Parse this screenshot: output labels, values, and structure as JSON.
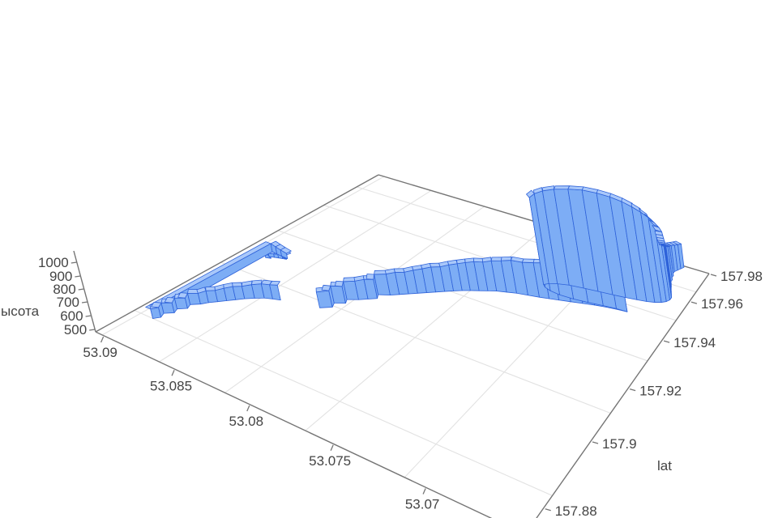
{
  "figure": {
    "kind": "3d-track-elevation-plot",
    "background": "#ffffff"
  },
  "axes": {
    "z": {
      "title": "ысота",
      "ticks": [
        500,
        600,
        700,
        800,
        900,
        1000
      ]
    },
    "x": {
      "title": "",
      "ticks": [
        53.09,
        53.085,
        53.08,
        53.075,
        53.07
      ]
    },
    "lat": {
      "title": "lat",
      "ticks": [
        157.88,
        157.9,
        157.92,
        157.94,
        157.96,
        157.98
      ]
    }
  },
  "colors": {
    "track_face": "#7dadf5",
    "track_top": "#a9c8fa",
    "track_edge": "#2e62d9",
    "grid_line": "#e2e2e2",
    "axis_line": "#757575",
    "tick_text": "#444444",
    "background": "#ffffff"
  },
  "chart_data": {
    "type": "line",
    "subtype": "3d-track-extruded-columns",
    "title": "",
    "xlabel": "",
    "lat_label": "lat",
    "zlabel": "ысота",
    "x_range": [
      53.07,
      53.09
    ],
    "lat_range": [
      157.88,
      157.98
    ],
    "z_range": [
      450,
      1060
    ],
    "z_base": 445,
    "grid": true,
    "legend": false,
    "point_format": [
      "lat",
      "x",
      "height"
    ],
    "points": [
      [
        157.8735,
        53.0885,
        468
      ],
      [
        157.8743,
        53.0881,
        469
      ],
      [
        157.8751,
        53.0884,
        470
      ],
      [
        157.8759,
        53.088,
        471
      ],
      [
        157.8766,
        53.0877,
        472
      ],
      [
        157.8772,
        53.0874,
        473
      ],
      [
        157.8777,
        53.0871,
        474
      ],
      [
        157.8781,
        53.0875,
        478
      ],
      [
        157.8784,
        53.0871,
        484
      ],
      [
        157.8787,
        53.0877,
        492
      ],
      [
        157.879,
        53.0882,
        500
      ],
      [
        157.8794,
        53.0887,
        507
      ],
      [
        157.88,
        53.0889,
        512
      ],
      [
        157.881,
        53.0886,
        514
      ],
      [
        157.8821,
        53.0888,
        519
      ],
      [
        157.8832,
        53.0883,
        515
      ],
      [
        157.8843,
        53.0885,
        522
      ],
      [
        157.8854,
        53.088,
        518
      ],
      [
        157.8865,
        53.0882,
        525
      ],
      [
        157.8876,
        53.0877,
        521
      ],
      [
        157.8887,
        53.0874,
        528
      ],
      [
        157.8898,
        53.087,
        524
      ],
      [
        157.8909,
        53.0866,
        532
      ],
      [
        157.892,
        53.0862,
        537
      ],
      [
        157.8931,
        53.0858,
        532
      ],
      [
        157.8942,
        53.0853,
        539
      ],
      [
        157.8952,
        53.0848,
        543
      ],
      [
        157.8958,
        53.0843,
        542
      ],
      [
        157.8963,
        53.0838,
        546
      ],
      null,
      [
        157.8982,
        53.0812,
        548
      ],
      [
        157.8996,
        53.0806,
        552
      ],
      [
        157.901,
        53.0808,
        558
      ],
      [
        157.9024,
        53.0802,
        554
      ],
      [
        157.9038,
        53.0804,
        562
      ],
      [
        157.9052,
        53.0798,
        566
      ],
      [
        157.9066,
        53.0794,
        572
      ],
      [
        157.908,
        53.079,
        568
      ],
      [
        157.9094,
        53.0792,
        577
      ],
      [
        157.9108,
        53.0786,
        581
      ],
      [
        157.9122,
        53.0782,
        587
      ],
      [
        157.9136,
        53.0778,
        584
      ],
      [
        157.915,
        53.0774,
        592
      ],
      [
        157.9164,
        53.077,
        597
      ],
      [
        157.9178,
        53.0766,
        604
      ],
      [
        157.9192,
        53.0762,
        601
      ],
      [
        157.9206,
        53.0758,
        609
      ],
      [
        157.922,
        53.0754,
        614
      ],
      [
        157.9232,
        53.075,
        620
      ],
      [
        157.9244,
        53.0746,
        626
      ],
      [
        157.9256,
        53.0742,
        624
      ],
      [
        157.9268,
        53.0738,
        632
      ],
      [
        157.9278,
        53.0733,
        638
      ],
      [
        157.9288,
        53.0728,
        646
      ],
      [
        157.9296,
        53.0722,
        644
      ],
      [
        157.9304,
        53.0716,
        652
      ],
      [
        157.9312,
        53.0711,
        658
      ],
      [
        157.932,
        53.0706,
        665
      ],
      [
        157.933,
        53.07,
        676
      ],
      [
        157.934,
        53.0694,
        690
      ],
      [
        157.935,
        53.0688,
        708
      ],
      [
        157.9358,
        53.0682,
        730
      ],
      [
        157.9364,
        53.0676,
        755
      ],
      [
        157.9368,
        53.0671,
        782
      ],
      [
        157.9366,
        53.0677,
        810
      ],
      [
        157.936,
        53.0684,
        838
      ],
      [
        157.9352,
        53.0692,
        864
      ],
      [
        157.9346,
        53.07,
        888
      ],
      [
        157.9344,
        53.0708,
        912
      ],
      [
        157.9348,
        53.0714,
        936
      ],
      [
        157.9356,
        53.0718,
        958
      ],
      [
        157.9366,
        53.072,
        978
      ],
      [
        157.9378,
        53.0718,
        996
      ],
      [
        157.939,
        53.0714,
        1012
      ],
      [
        157.9402,
        53.0708,
        1026
      ],
      [
        157.9412,
        53.07,
        1038
      ],
      [
        157.942,
        53.0692,
        1045
      ],
      [
        157.9428,
        53.0684,
        1040
      ],
      [
        157.9436,
        53.0677,
        1028
      ],
      [
        157.9444,
        53.0671,
        1010
      ],
      [
        157.9452,
        53.0666,
        986
      ],
      [
        157.9462,
        53.0662,
        958
      ],
      [
        157.9474,
        53.0659,
        926
      ],
      [
        157.9488,
        53.0657,
        892
      ],
      [
        157.9504,
        53.0656,
        856
      ],
      [
        157.952,
        53.0656,
        820
      ],
      [
        157.9536,
        53.0657,
        786
      ],
      [
        157.9552,
        53.0658,
        754
      ],
      [
        157.9568,
        53.0659,
        724
      ],
      [
        157.9586,
        53.066,
        698
      ],
      [
        157.9604,
        53.0661,
        676
      ],
      [
        157.9622,
        53.0662,
        657
      ],
      [
        157.9642,
        53.0662,
        641
      ],
      [
        157.9662,
        53.0663,
        628
      ],
      [
        157.9682,
        53.0663,
        617
      ],
      [
        157.9702,
        53.0664,
        608
      ],
      [
        157.9722,
        53.0664,
        601
      ],
      [
        157.9744,
        53.0663,
        595
      ],
      [
        157.9766,
        53.0662,
        590
      ],
      [
        157.9788,
        53.0661,
        586
      ]
    ]
  }
}
